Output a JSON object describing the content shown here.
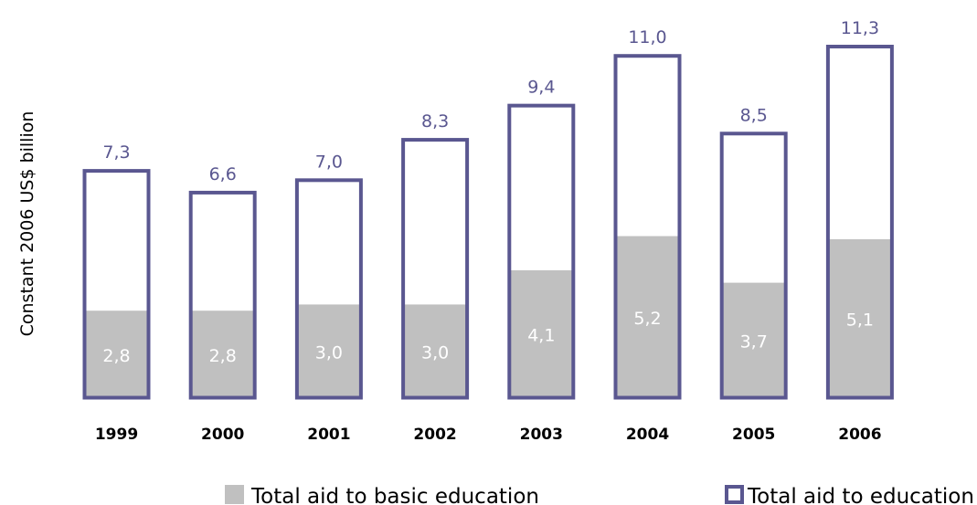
{
  "chart_data": {
    "type": "bar",
    "ylabel": "Constant 2006 US$ billion",
    "categories": [
      "1999",
      "2000",
      "2001",
      "2002",
      "2003",
      "2004",
      "2005",
      "2006"
    ],
    "series": [
      {
        "name": "Total aid to basic education",
        "values": [
          2.8,
          2.8,
          3.0,
          3.0,
          4.1,
          5.2,
          3.7,
          5.1
        ],
        "labels": [
          "2,8",
          "2,8",
          "3,0",
          "3,0",
          "4,1",
          "5,2",
          "3,7",
          "5,1"
        ]
      },
      {
        "name": "Total aid to education",
        "values": [
          7.3,
          6.6,
          7.0,
          8.3,
          9.4,
          11.0,
          8.5,
          11.3
        ],
        "labels": [
          "7,3",
          "6,6",
          "7,0",
          "8,3",
          "9,4",
          "11,0",
          "8,5",
          "11,3"
        ]
      }
    ],
    "ylim": [
      0,
      11.3
    ],
    "grid": false,
    "legend": "bottom",
    "colors": {
      "basic": "#c0c0c0",
      "total_outline": "#5a5790",
      "total_label": "#5a5790"
    }
  }
}
